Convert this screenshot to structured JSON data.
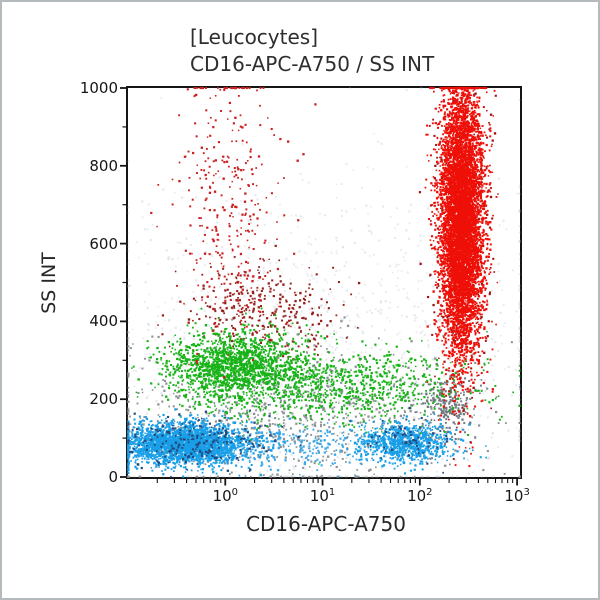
{
  "window": {
    "background": "#ffffff",
    "border_color": "#b5babd"
  },
  "header": {
    "line1": "[Leucocytes]",
    "line2": "CD16-APC-A750 / SS INT"
  },
  "chart_data": {
    "type": "scatter",
    "variant": "flow-cytometry-dot-plot",
    "title": "[Leucocytes]",
    "subtitle": "CD16-APC-A750 / SS INT",
    "xlabel": "CD16-APC-A750",
    "ylabel": "SS INT",
    "x_scale": "log10",
    "x_range": [
      0.1,
      1072
    ],
    "x_range_log10": [
      -1,
      3.03
    ],
    "y_range": [
      0,
      1000
    ],
    "x_tick_base": "10",
    "x_major_tick_exponents": [
      "0",
      "1",
      "2",
      "3"
    ],
    "y_major_ticks": [
      0,
      200,
      400,
      600,
      800,
      1000
    ],
    "y_tick_labels": [
      "0",
      "200",
      "400",
      "600",
      "800",
      "1000"
    ],
    "y_minor_ticks": [
      100,
      300,
      500,
      700,
      900
    ],
    "grid": false,
    "legend": null,
    "axis_color": "#151515",
    "populations": [
      {
        "name": "background-haze",
        "marker_color": "rgba(168,180,190,0.28)",
        "count": 1400,
        "x_log10_mean": 1.0,
        "x_log10_sd": 1.25,
        "y_mean": 300,
        "y_sd": 230
      },
      {
        "name": "debris-gray",
        "marker_color": "#8d9396",
        "count": 820,
        "x_log10_mean": 0.7,
        "x_log10_sd": 1.0,
        "y_mean": 165,
        "y_sd": 85
      },
      {
        "name": "debris-gray-right-patch",
        "marker_color": "#707a80",
        "count": 230,
        "x_log10_mean": 2.3,
        "x_log10_sd": 0.12,
        "y_mean": 185,
        "y_sd": 38
      },
      {
        "name": "dark-red-mid-left",
        "marker_color": "#97201d",
        "count": 330,
        "x_log10_mean": 0.35,
        "x_log10_sd": 0.42,
        "y_mean": 420,
        "y_sd": 58
      },
      {
        "name": "monocytes-band",
        "marker_color": "#17b317",
        "count": 950,
        "x_log10_mean": 1.1,
        "x_log10_sd": 0.72,
        "y_mean": 235,
        "y_sd": 48
      },
      {
        "name": "monocytes-core",
        "marker_color": "#17b317",
        "count": 1500,
        "x_log10_mean": 0.08,
        "x_log10_sd": 0.34,
        "y_mean": 285,
        "y_sd": 42
      },
      {
        "name": "eosinophils-left-column",
        "marker_color": "#cc2020",
        "count": 330,
        "x_log10_mean": 0.05,
        "x_log10_sd": 0.28,
        "y_mean": 730,
        "y_sd": 195
      },
      {
        "name": "lymphocytes-bridge",
        "marker_color": "#3aa9e8",
        "count": 260,
        "x_log10_mean": 0.6,
        "x_log10_sd": 0.55,
        "y_mean": 82,
        "y_sd": 28
      },
      {
        "name": "lymphocytes",
        "marker_color": "#199fe8",
        "count": 2600,
        "x_log10_mean": -0.42,
        "x_log10_sd": 0.33,
        "y_mean": 85,
        "y_sd": 26
      },
      {
        "name": "nk-cells-cd16pos",
        "marker_color": "#199fe8",
        "count": 850,
        "x_log10_mean": 1.85,
        "x_log10_sd": 0.25,
        "y_mean": 88,
        "y_sd": 24
      },
      {
        "name": "dark-blue-specks-left",
        "marker_color": "#23497e",
        "count": 210,
        "x_log10_mean": -0.3,
        "x_log10_sd": 0.4,
        "y_mean": 96,
        "y_sd": 32
      },
      {
        "name": "dark-blue-specks-right",
        "marker_color": "#23497e",
        "count": 60,
        "x_log10_mean": 1.85,
        "x_log10_sd": 0.22,
        "y_mean": 96,
        "y_sd": 28
      },
      {
        "name": "neutrophils-dark-specks",
        "marker_color": "#a31212",
        "count": 520,
        "x_log10_mean": 2.43,
        "x_log10_sd": 0.14,
        "y_mean": 650,
        "y_sd": 195
      },
      {
        "name": "neutrophils",
        "marker_color": "#ee1008",
        "count": 6500,
        "x_log10_mean": 2.43,
        "x_log10_sd": 0.11,
        "y_mean": 660,
        "y_sd": 175
      }
    ]
  }
}
